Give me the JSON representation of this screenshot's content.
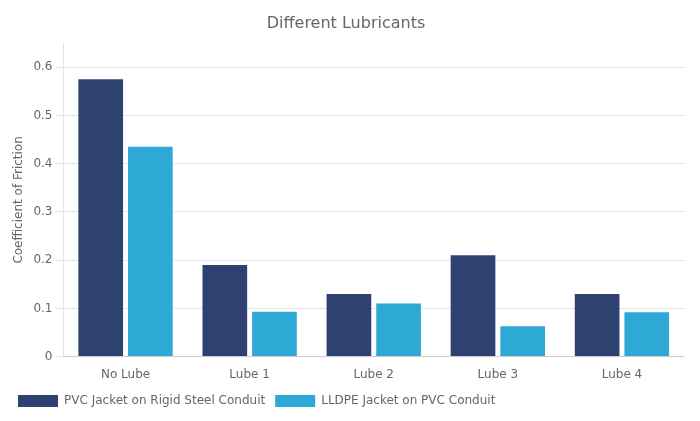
{
  "chart_data": {
    "type": "bar",
    "title": "Different Lubricants",
    "ylabel": "Coefficient of Friction",
    "categories": [
      "No Lube",
      "Lube 1",
      "Lube 2",
      "Lube 3",
      "Lube 4"
    ],
    "series": [
      {
        "name": "PVC Jacket on Rigid Steel Conduit",
        "color": "#2E4272",
        "values": [
          0.575,
          0.19,
          0.13,
          0.21,
          0.13
        ]
      },
      {
        "name": "LLDPE Jacket on PVC Conduit",
        "color": "#2EA8D5",
        "values": [
          0.435,
          0.093,
          0.11,
          0.063,
          0.092
        ]
      }
    ],
    "ylim": [
      0,
      0.65
    ],
    "yticks": [
      0,
      0.1,
      0.2,
      0.3,
      0.4,
      0.5,
      0.6
    ],
    "grid": true,
    "legend": "bottom"
  }
}
